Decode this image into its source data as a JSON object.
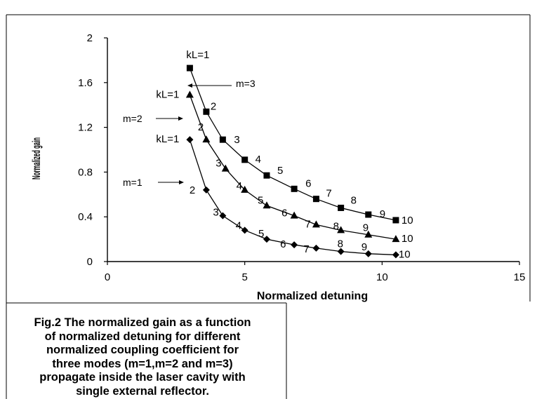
{
  "chart_data": {
    "type": "line",
    "xlabel": "Normalized detuning",
    "ylabel": "Normalized gain",
    "xlim": [
      0,
      15
    ],
    "ylim": [
      0,
      2
    ],
    "x_ticks": [
      "0",
      "5",
      "10",
      "15"
    ],
    "y_ticks": [
      "0",
      "0.4",
      "0.8",
      "1.2",
      "1.6",
      "2"
    ],
    "grid": false,
    "legend": "none",
    "series": [
      {
        "marker": "diamond",
        "point_labels": [
          "kL=1",
          "2",
          "3",
          "4",
          "5",
          "6",
          "7",
          "8",
          "9",
          "10"
        ],
        "x": [
          3.0,
          3.6,
          4.2,
          5.0,
          5.8,
          6.8,
          7.6,
          8.5,
          9.5,
          10.5
        ],
        "y": [
          1.09,
          0.64,
          0.41,
          0.28,
          0.2,
          0.15,
          0.12,
          0.09,
          0.07,
          0.06
        ]
      },
      {
        "marker": "triangle",
        "point_labels": [
          "kL=1",
          "2",
          "3",
          "4",
          "5",
          "6",
          "7",
          "8",
          "9",
          "10"
        ],
        "x": [
          3.0,
          3.6,
          4.3,
          5.0,
          5.8,
          6.8,
          7.6,
          8.5,
          9.5,
          10.5
        ],
        "y": [
          1.49,
          1.09,
          0.83,
          0.64,
          0.5,
          0.41,
          0.33,
          0.28,
          0.24,
          0.2
        ]
      },
      {
        "marker": "square",
        "point_labels": [
          "kL=1",
          "2",
          "3",
          "4",
          "5",
          "6",
          "7",
          "8",
          "9",
          "10"
        ],
        "x": [
          3.0,
          3.6,
          4.2,
          5.0,
          5.8,
          6.8,
          7.6,
          8.5,
          9.5,
          10.5
        ],
        "y": [
          1.73,
          1.34,
          1.09,
          0.91,
          0.77,
          0.65,
          0.56,
          0.48,
          0.42,
          0.37
        ]
      }
    ],
    "annotations": [
      "m=1",
      "m=2",
      "m=3"
    ]
  },
  "caption": [
    "Fig.2 The normalized gain as a function",
    "of normalized detuning for different",
    "normalized coupling coefficient for",
    "three modes (m=1,m=2 and m=3)",
    "propagate inside the laser cavity with",
    "single external reflector."
  ]
}
